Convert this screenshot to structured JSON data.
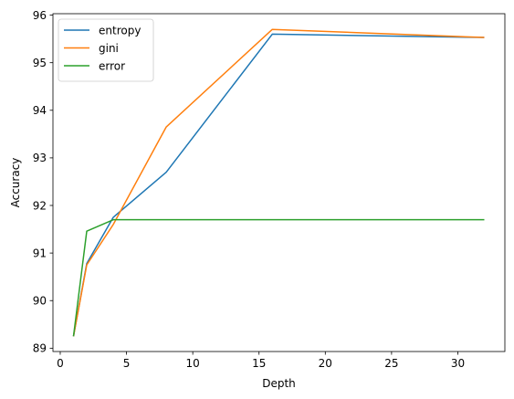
{
  "chart_data": {
    "type": "line",
    "xlabel": "Depth",
    "ylabel": "Accuracy",
    "xlim": [
      -0.55,
      33.55
    ],
    "ylim": [
      88.93,
      96.03
    ],
    "xticks": [
      0,
      5,
      10,
      15,
      20,
      25,
      30
    ],
    "yticks": [
      89,
      90,
      91,
      92,
      93,
      94,
      95,
      96
    ],
    "grid": false,
    "legend_position": "upper left",
    "series": [
      {
        "name": "entropy",
        "color": "#1f77b4",
        "x": [
          1,
          2,
          4,
          8,
          16,
          32
        ],
        "y": [
          89.25,
          90.78,
          91.75,
          92.7,
          95.6,
          95.53
        ]
      },
      {
        "name": "gini",
        "color": "#ff7f0e",
        "x": [
          1,
          2,
          4,
          8,
          16,
          32
        ],
        "y": [
          89.25,
          90.75,
          91.6,
          93.65,
          95.7,
          95.53
        ]
      },
      {
        "name": "error",
        "color": "#2ca02c",
        "x": [
          1,
          2,
          4,
          8,
          16,
          32
        ],
        "y": [
          89.25,
          91.46,
          91.7,
          91.7,
          91.7,
          91.7
        ]
      }
    ]
  }
}
